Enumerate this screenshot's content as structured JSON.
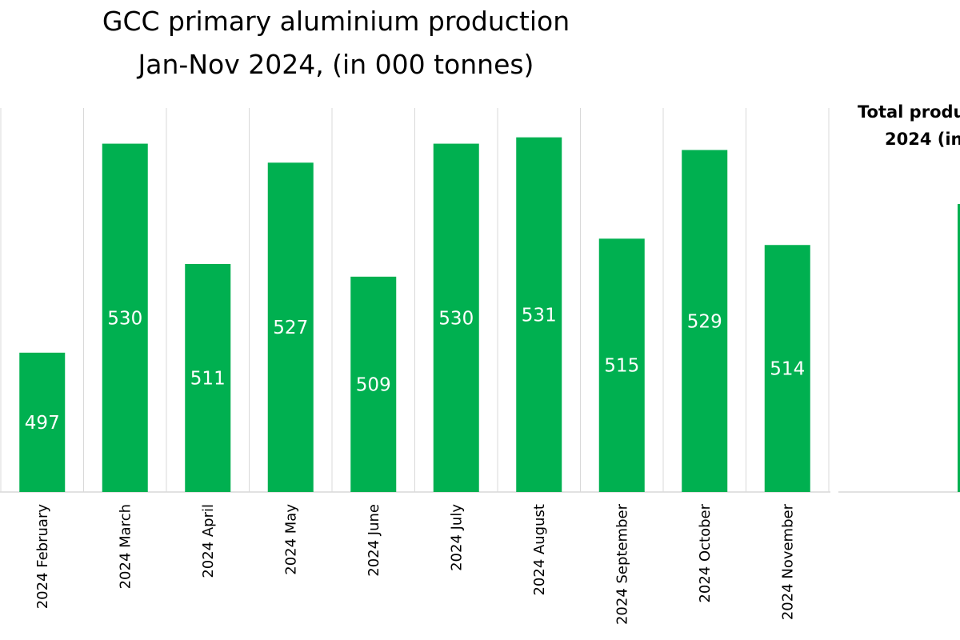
{
  "chart_data": {
    "type": "bar",
    "title_lines": [
      "GCC primary aluminium production",
      "Jan-Nov 2024, (in 000 tonnes)"
    ],
    "categories": [
      "2024 February",
      "2024 March",
      "2024 April",
      "2024 May",
      "2024 June",
      "2024 July",
      "2024 August",
      "2024 September",
      "2024 October",
      "2024 November"
    ],
    "values": [
      497,
      530,
      511,
      527,
      509,
      530,
      531,
      515,
      529,
      514
    ],
    "ylim": [
      475,
      535
    ],
    "grid": "vertical",
    "bar_color": "#00b050",
    "xlabel": "",
    "ylabel": ""
  },
  "side_chart": {
    "title_lines": [
      "Total produ",
      "2024 (in"
    ],
    "bar_color": "#00b050"
  }
}
